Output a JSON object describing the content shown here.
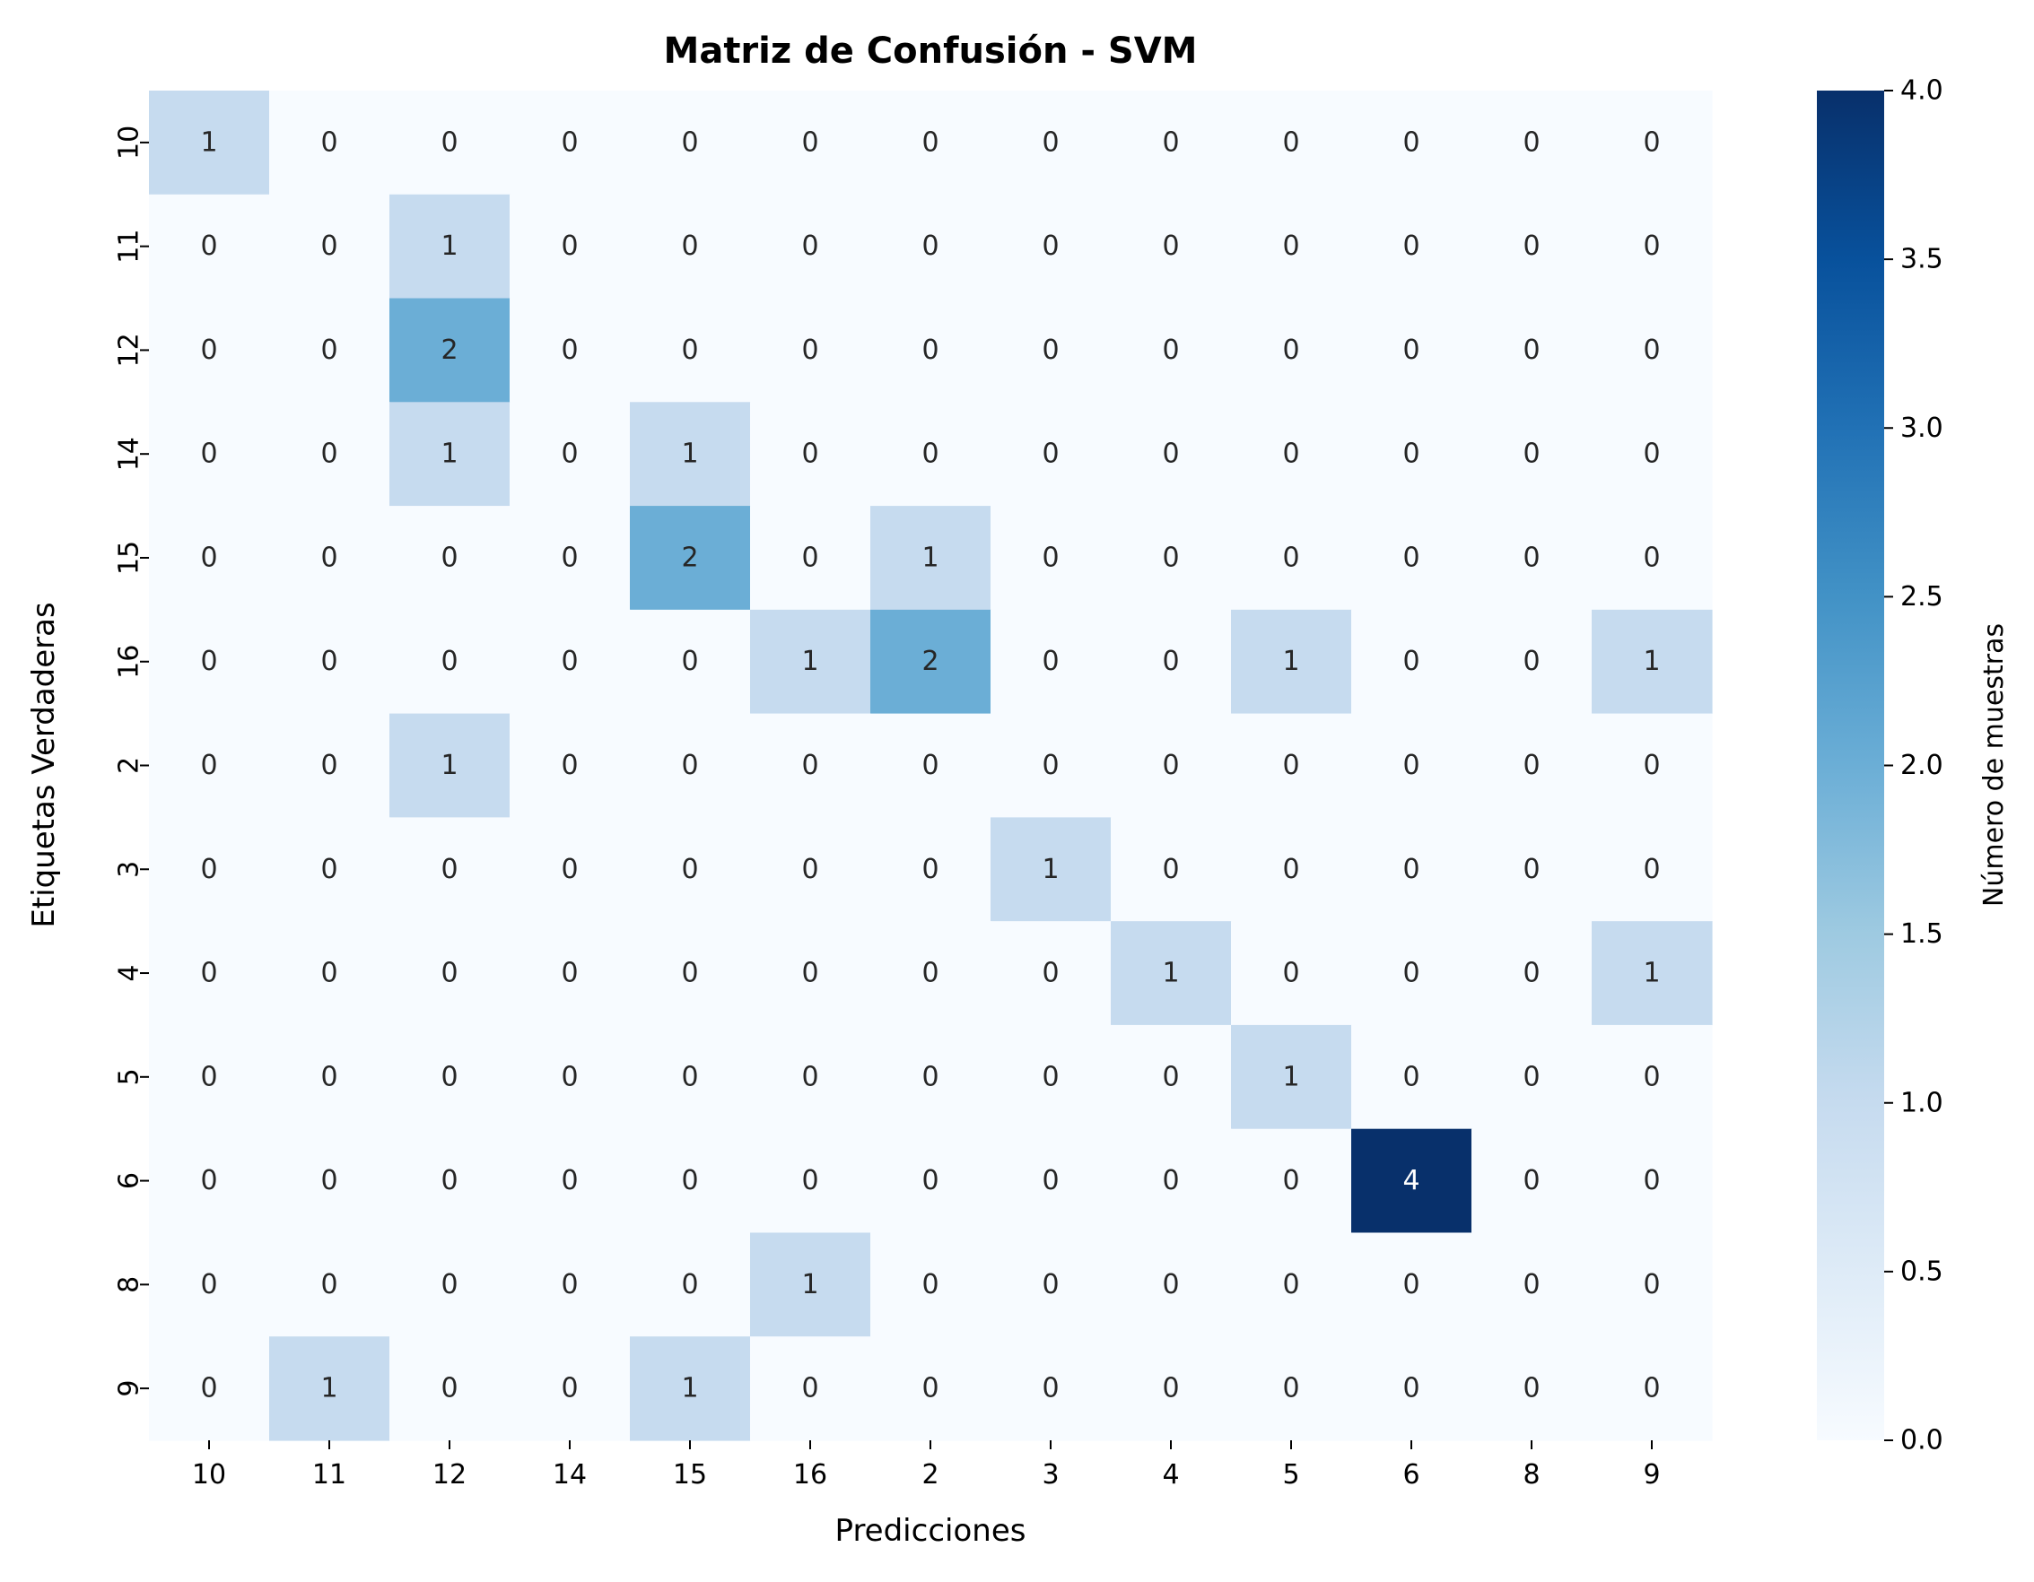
{
  "chart_data": {
    "type": "heatmap",
    "title": "Matriz de Confusión - SVM",
    "xlabel": "Predicciones",
    "ylabel": "Etiquetas Verdaderas",
    "x_categories": [
      "10",
      "11",
      "12",
      "14",
      "15",
      "16",
      "2",
      "3",
      "4",
      "5",
      "6",
      "8",
      "9"
    ],
    "y_categories": [
      "10",
      "11",
      "12",
      "14",
      "15",
      "16",
      "2",
      "3",
      "4",
      "5",
      "6",
      "8",
      "9"
    ],
    "values": [
      [
        1,
        0,
        0,
        0,
        0,
        0,
        0,
        0,
        0,
        0,
        0,
        0,
        0
      ],
      [
        0,
        0,
        1,
        0,
        0,
        0,
        0,
        0,
        0,
        0,
        0,
        0,
        0
      ],
      [
        0,
        0,
        2,
        0,
        0,
        0,
        0,
        0,
        0,
        0,
        0,
        0,
        0
      ],
      [
        0,
        0,
        1,
        0,
        1,
        0,
        0,
        0,
        0,
        0,
        0,
        0,
        0
      ],
      [
        0,
        0,
        0,
        0,
        2,
        0,
        1,
        0,
        0,
        0,
        0,
        0,
        0
      ],
      [
        0,
        0,
        0,
        0,
        0,
        1,
        2,
        0,
        0,
        1,
        0,
        0,
        1
      ],
      [
        0,
        0,
        1,
        0,
        0,
        0,
        0,
        0,
        0,
        0,
        0,
        0,
        0
      ],
      [
        0,
        0,
        0,
        0,
        0,
        0,
        0,
        1,
        0,
        0,
        0,
        0,
        0
      ],
      [
        0,
        0,
        0,
        0,
        0,
        0,
        0,
        0,
        1,
        0,
        0,
        0,
        1
      ],
      [
        0,
        0,
        0,
        0,
        0,
        0,
        0,
        0,
        0,
        1,
        0,
        0,
        0
      ],
      [
        0,
        0,
        0,
        0,
        0,
        0,
        0,
        0,
        0,
        0,
        4,
        0,
        0
      ],
      [
        0,
        0,
        0,
        0,
        0,
        1,
        0,
        0,
        0,
        0,
        0,
        0,
        0
      ],
      [
        0,
        1,
        0,
        0,
        1,
        0,
        0,
        0,
        0,
        0,
        0,
        0,
        0
      ]
    ],
    "colorbar": {
      "label": "Número de muestras",
      "vmin": 0.0,
      "vmax": 4.0,
      "ticks": [
        "0.0",
        "0.5",
        "1.0",
        "1.5",
        "2.0",
        "2.5",
        "3.0",
        "3.5",
        "4.0"
      ],
      "colormap": "Blues"
    },
    "colors": {
      "cmap_low": "#f7fbff",
      "cmap_high": "#08306b",
      "text_dark": "#262626",
      "text_light": "#ffffff"
    },
    "grid": false
  }
}
